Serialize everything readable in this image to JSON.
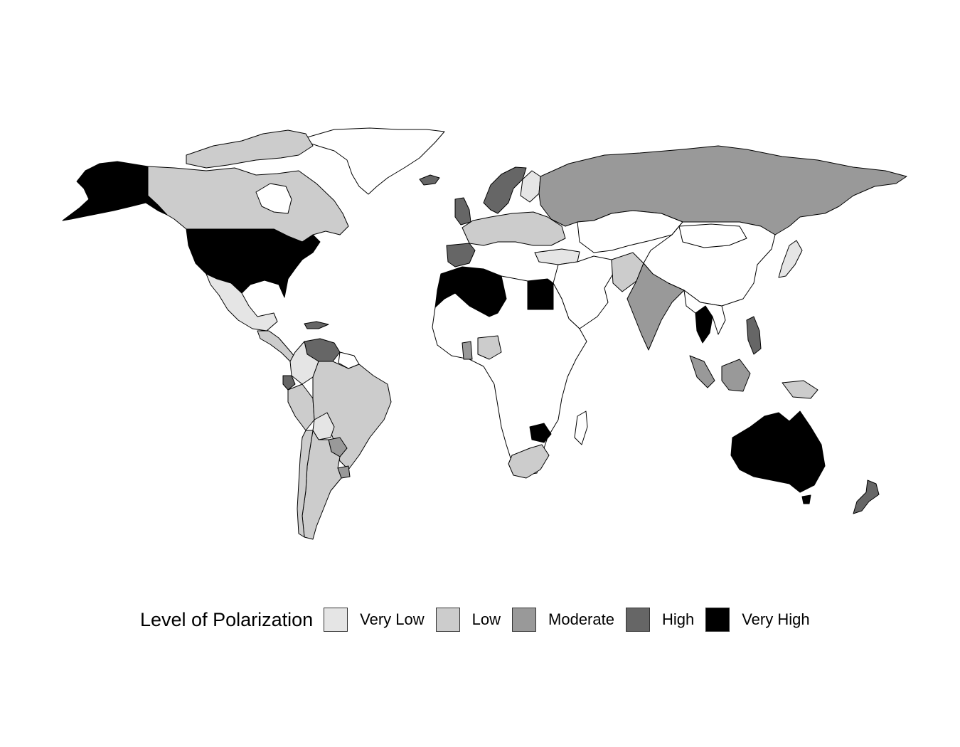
{
  "legend": {
    "title": "Level of Polarization",
    "categories": [
      {
        "key": "very_low",
        "label": "Very Low",
        "color": "#e5e5e5"
      },
      {
        "key": "low",
        "label": "Low",
        "color": "#cccccc"
      },
      {
        "key": "moderate",
        "label": "Moderate",
        "color": "#999999"
      },
      {
        "key": "high",
        "label": "High",
        "color": "#666666"
      },
      {
        "key": "very_high",
        "label": "Very High",
        "color": "#000000"
      }
    ]
  },
  "no_data_color": "#ffffff",
  "map": {
    "projection": "equirectangular",
    "background": "#ffffff"
  }
}
